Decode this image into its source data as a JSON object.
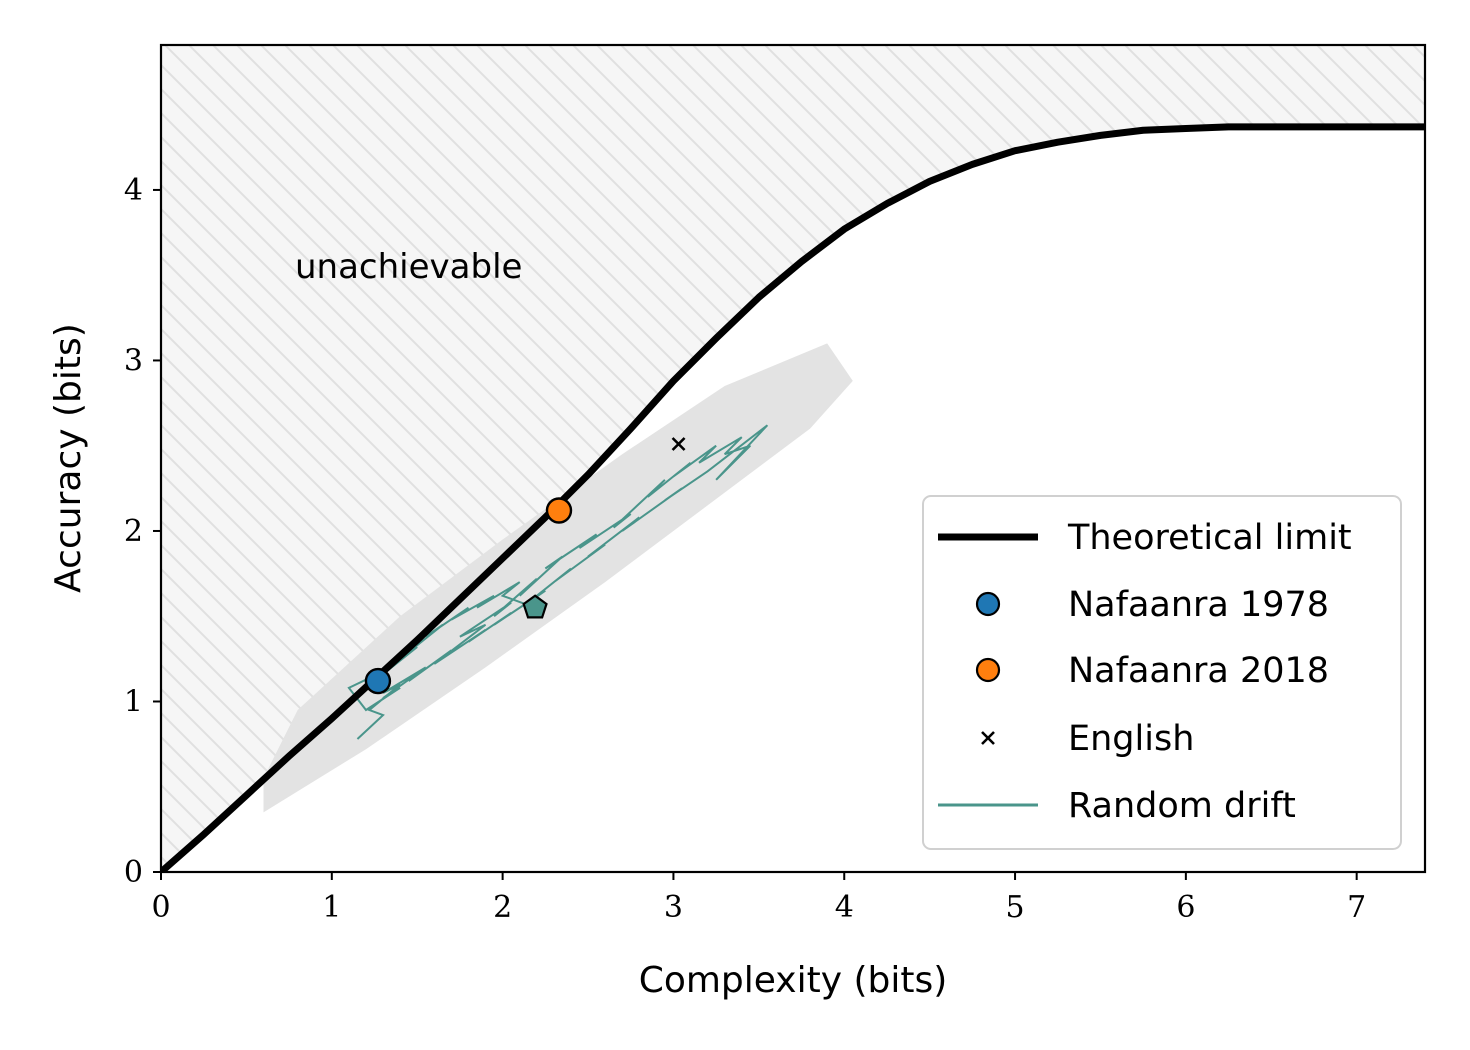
{
  "chart_data": {
    "type": "line",
    "xlabel": "Complexity (bits)",
    "ylabel": "Accuracy (bits)",
    "xlim": [
      0,
      7.4
    ],
    "ylim": [
      0,
      4.85
    ],
    "xticks": [
      "0",
      "1",
      "2",
      "3",
      "4",
      "5",
      "6",
      "7"
    ],
    "yticks": [
      "0",
      "1",
      "2",
      "3",
      "4"
    ],
    "grid": false,
    "legend_position": "bottom-right",
    "annotation": "unachievable",
    "colors": {
      "limit": "#000000",
      "nafaanra1978": "#1f77b4",
      "nafaanra2018": "#ff7f0e",
      "drift": "#4a958b",
      "drift_band": "#e3e3e3",
      "region_fill": "#f6f6f6",
      "hatch": "#e0e0e0"
    },
    "series": [
      {
        "name": "Theoretical limit",
        "kind": "line",
        "x": [
          0,
          0.25,
          0.5,
          0.75,
          1.0,
          1.25,
          1.5,
          1.75,
          2.0,
          2.25,
          2.5,
          2.75,
          3.0,
          3.25,
          3.5,
          3.75,
          4.0,
          4.25,
          4.5,
          4.75,
          5.0,
          5.25,
          5.5,
          5.75,
          6.0,
          6.25,
          6.5,
          6.75,
          7.0,
          7.4
        ],
        "y": [
          0,
          0.22,
          0.45,
          0.68,
          0.9,
          1.13,
          1.36,
          1.6,
          1.84,
          2.08,
          2.33,
          2.6,
          2.88,
          3.13,
          3.37,
          3.58,
          3.77,
          3.92,
          4.05,
          4.15,
          4.23,
          4.28,
          4.32,
          4.35,
          4.36,
          4.37,
          4.37,
          4.37,
          4.37,
          4.37
        ]
      },
      {
        "name": "Nafaanra 1978",
        "kind": "marker",
        "marker": "circle",
        "x": [
          1.27
        ],
        "y": [
          1.12
        ]
      },
      {
        "name": "Nafaanra 2018",
        "kind": "marker",
        "marker": "circle",
        "x": [
          2.33
        ],
        "y": [
          2.12
        ]
      },
      {
        "name": "English",
        "kind": "marker",
        "marker": "x",
        "x": [
          3.03
        ],
        "y": [
          2.51
        ]
      },
      {
        "name": "Random drift",
        "kind": "line",
        "x": [
          1.15,
          1.3,
          1.22,
          1.4,
          1.3,
          1.55,
          1.45,
          1.7,
          1.6,
          1.9,
          1.75,
          2.05,
          1.95,
          2.2,
          2.1,
          2.35,
          2.25,
          2.55,
          2.45,
          2.75,
          2.65,
          2.95,
          2.85,
          3.1,
          3.0,
          3.25,
          3.15,
          3.4,
          3.3,
          3.45,
          3.25,
          3.55,
          3.2,
          2.95,
          3.05,
          2.7,
          2.8,
          2.5,
          2.6,
          2.3,
          2.4,
          2.15,
          2.25,
          1.95,
          2.05,
          1.8,
          1.9,
          1.6,
          1.7,
          1.45,
          1.55,
          1.3,
          1.4,
          1.2,
          1.1,
          1.35,
          1.25,
          1.5,
          1.4,
          1.65,
          1.55,
          1.8,
          1.7,
          1.95,
          1.85,
          2.1,
          2.0,
          2.19
        ],
        "y": [
          0.78,
          0.92,
          0.95,
          1.1,
          1.05,
          1.2,
          1.12,
          1.3,
          1.22,
          1.45,
          1.38,
          1.58,
          1.5,
          1.72,
          1.62,
          1.85,
          1.78,
          1.98,
          1.9,
          2.1,
          2.02,
          2.3,
          2.2,
          2.4,
          2.32,
          2.5,
          2.4,
          2.55,
          2.45,
          2.5,
          2.3,
          2.62,
          2.35,
          2.18,
          2.25,
          2.0,
          2.08,
          1.85,
          1.92,
          1.7,
          1.78,
          1.58,
          1.65,
          1.45,
          1.52,
          1.35,
          1.42,
          1.22,
          1.3,
          1.12,
          1.2,
          1.02,
          1.08,
          0.95,
          1.08,
          1.2,
          1.12,
          1.32,
          1.25,
          1.45,
          1.38,
          1.55,
          1.48,
          1.62,
          1.55,
          1.7,
          1.62,
          1.55
        ]
      }
    ],
    "drift_band": {
      "x": [
        0.6,
        1.2,
        1.9,
        2.6,
        3.2,
        3.8,
        4.05,
        3.9,
        3.3,
        2.7,
        2.0,
        1.4,
        0.8,
        0.6
      ],
      "y": [
        0.35,
        0.72,
        1.2,
        1.7,
        2.15,
        2.6,
        2.88,
        3.1,
        2.85,
        2.45,
        1.95,
        1.5,
        0.95,
        0.55
      ]
    },
    "final_state": {
      "marker": "pentagon",
      "x": [
        2.19
      ],
      "y": [
        1.55
      ]
    }
  }
}
